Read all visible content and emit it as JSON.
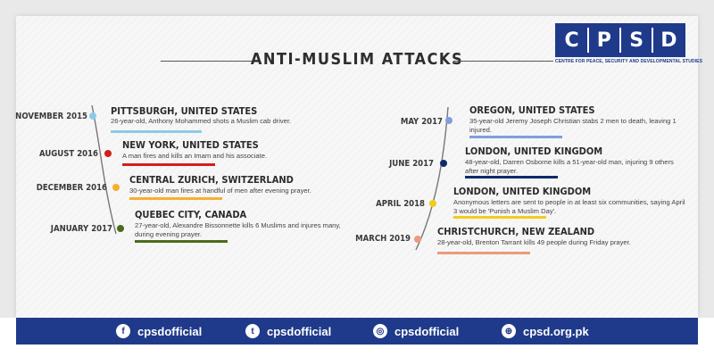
{
  "title": "ANTI-MUSLIM ATTACKS",
  "logo": {
    "letters": [
      "C",
      "P",
      "S",
      "D"
    ],
    "subtitle": "CENTRE FOR PEACE, SECURITY AND DEVELOPMENTAL STUDIES"
  },
  "events_left": [
    {
      "date": "NOVEMBER 2015",
      "place": "PITTSBURGH, UNITED STATES",
      "desc": "26-year-old, Anthony Mohammed shots a Muslim cab driver.",
      "color": "#8ccbe8"
    },
    {
      "date": "AUGUST 2016",
      "place": "NEW YORK, UNITED STATES",
      "desc": "A man fires and kills an Imam and his associate.",
      "color": "#d01f1f"
    },
    {
      "date": "DECEMBER 2016",
      "place": "CENTRAL ZURICH, SWITZERLAND",
      "desc": "30-year-old man fires at handful of men after evening prayer.",
      "color": "#f5b030"
    },
    {
      "date": "JANUARY 2017",
      "place": "QUEBEC CITY, CANADA",
      "desc": "27-year-old, Alexandre Bissonnette kills 6 Muslims and injures many, during evening prayer.",
      "color": "#4b6b1e"
    }
  ],
  "events_right": [
    {
      "date": "MAY 2017",
      "place": "OREGON, UNITED STATES",
      "desc": "35-year-old Jeremy Joseph Christian stabs 2 men to death, leaving 1 injured.",
      "color": "#7f9fdc"
    },
    {
      "date": "JUNE 2017",
      "place": "LONDON, UNITED KINGDOM",
      "desc": "48-year-old, Darren Osborne kills a 51-year-old man, injuring 9 others after night prayer.",
      "color": "#0e2a6b"
    },
    {
      "date": "APRIL 2018",
      "place": "LONDON, UNITED KINGDOM",
      "desc": "Anonymous letters are sent to people in at least six communities, saying April 3 would be 'Punish a Muslim Day'.",
      "color": "#f2cc1a"
    },
    {
      "date": "MARCH 2019",
      "place": "CHRISTCHURCH, NEW ZEALAND",
      "desc": "28-year-old, Brenton Tarrant kills 49 people during Friday prayer.",
      "color": "#ec9a7e"
    }
  ],
  "footer": [
    {
      "icon": "facebook-icon",
      "glyph": "f",
      "handle": "cpsdofficial"
    },
    {
      "icon": "twitter-icon",
      "glyph": "t",
      "handle": "cpsdofficial"
    },
    {
      "icon": "instagram-icon",
      "glyph": "◎",
      "handle": "cpsdofficial"
    },
    {
      "icon": "globe-icon",
      "glyph": "⊕",
      "handle": "cpsd.org.pk"
    }
  ]
}
